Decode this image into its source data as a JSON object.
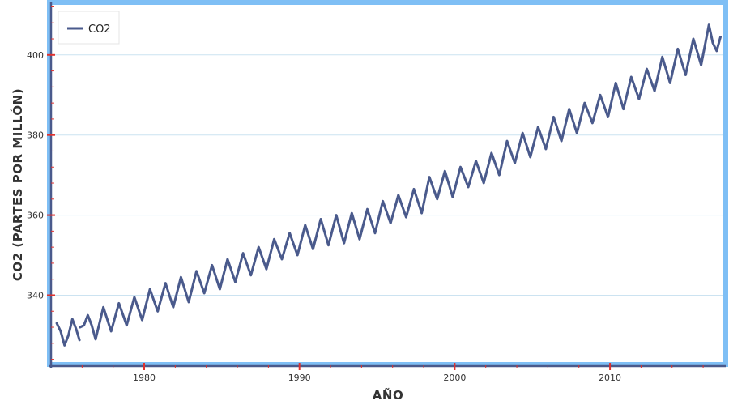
{
  "chart_data": {
    "type": "line",
    "title": "",
    "xlabel": "AÑO",
    "ylabel": "CO2 (PARTES POR MILLÓN)",
    "xlim": [
      1974.0,
      2017.3
    ],
    "ylim": [
      322.5,
      412.5
    ],
    "x_ticks": [
      1980,
      1990,
      2000,
      2010
    ],
    "x_tick_labels": [
      "1980",
      "1990",
      "2000",
      "2010"
    ],
    "y_ticks": [
      340,
      360,
      380,
      400
    ],
    "y_tick_labels": [
      "340",
      "360",
      "380",
      "400"
    ],
    "grid": "horizontal",
    "legend": {
      "placement": "top-left",
      "entries": [
        "CO2"
      ]
    },
    "series": [
      {
        "name": "CO2",
        "color": "#4a5a8c",
        "segments": [
          {
            "x": [
              1974.37,
              1974.62,
              1974.87,
              1975.12,
              1975.37,
              1975.62,
              1975.83
            ],
            "y": [
              333.0,
              331.0,
              327.5,
              330.0,
              334.0,
              331.5,
              328.8
            ]
          },
          {
            "x": [
              1975.87,
              1976.12,
              1976.37,
              1976.62,
              1976.87,
              1977.37,
              1977.87,
              1978.37,
              1978.87,
              1979.37,
              1979.87,
              1980.37,
              1980.87,
              1981.37,
              1981.87,
              1982.37,
              1982.87,
              1983.37,
              1983.87,
              1984.37,
              1984.87,
              1985.37,
              1985.87,
              1986.37,
              1986.87,
              1987.37,
              1987.87,
              1988.37,
              1988.87,
              1989.37,
              1989.87,
              1990.37,
              1990.87,
              1991.37,
              1991.87,
              1992.37,
              1992.87,
              1993.37,
              1993.87,
              1994.37,
              1994.87,
              1995.37,
              1995.87,
              1996.37,
              1996.87,
              1997.37,
              1997.87,
              1998.37,
              1998.87,
              1999.37,
              1999.87,
              2000.37,
              2000.87,
              2001.37,
              2001.87,
              2002.37,
              2002.87,
              2003.37,
              2003.87,
              2004.37,
              2004.87,
              2005.37,
              2005.87,
              2006.37,
              2006.87,
              2007.37,
              2007.87,
              2008.37,
              2008.87,
              2009.37,
              2009.87,
              2010.37,
              2010.87,
              2011.37,
              2011.87,
              2012.37,
              2012.87,
              2013.37,
              2013.87,
              2014.37,
              2014.87,
              2015.37,
              2015.87,
              2016.37,
              2016.62,
              2016.87,
              2017.12
            ],
            "y": [
              332.0,
              332.5,
              335.0,
              332.5,
              329.0,
              337.0,
              331.0,
              338.0,
              332.5,
              339.5,
              333.8,
              341.5,
              336.0,
              343.0,
              337.0,
              344.5,
              338.3,
              346.0,
              340.5,
              347.5,
              341.5,
              349.0,
              343.3,
              350.5,
              345.0,
              352.0,
              346.5,
              354.0,
              349.0,
              355.5,
              350.0,
              357.5,
              351.5,
              359.0,
              352.5,
              360.0,
              353.0,
              360.5,
              354.0,
              361.5,
              355.5,
              363.5,
              358.0,
              365.0,
              359.5,
              366.5,
              360.5,
              369.5,
              364.0,
              371.0,
              364.5,
              372.0,
              367.0,
              373.5,
              368.0,
              375.5,
              370.0,
              378.5,
              373.0,
              380.5,
              374.5,
              382.0,
              376.5,
              384.5,
              378.5,
              386.5,
              380.5,
              388.0,
              383.0,
              390.0,
              384.5,
              393.0,
              386.5,
              394.5,
              389.0,
              396.5,
              391.0,
              399.5,
              393.0,
              401.5,
              395.0,
              404.0,
              397.5,
              407.5,
              403.0,
              401.0,
              404.5
            ]
          }
        ]
      }
    ]
  },
  "colors": {
    "frame": "#7fbff5",
    "axis": "#4a5a8c",
    "grid": "#cce3f1",
    "tick_mark": "#e0322f",
    "line": "#4a5a8c"
  }
}
